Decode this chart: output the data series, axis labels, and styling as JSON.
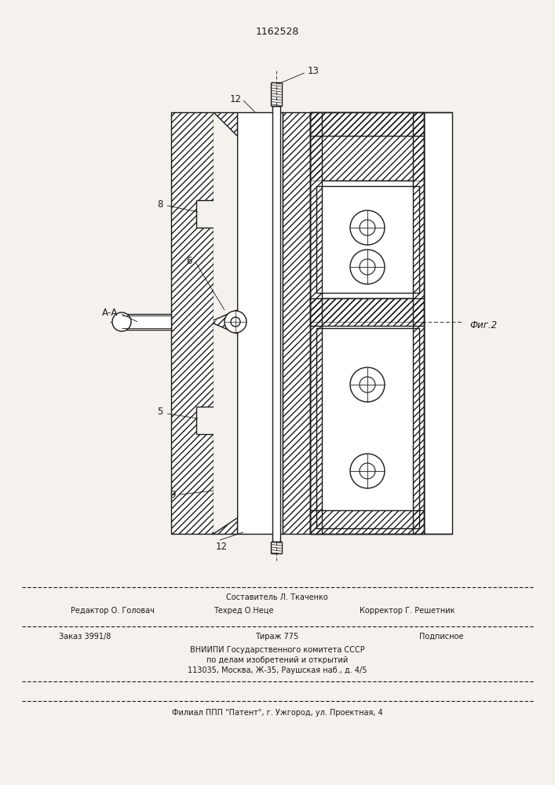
{
  "patent_number": "1162528",
  "bg": "#f5f2ee",
  "lc": "#1a1a1a",
  "title_fs": 9,
  "label_fs": 8.5,
  "footer_fs": 7.0,
  "composer_line": "Составитель Л. Ткаченко",
  "editor_line_left": "Редактор О. Головач",
  "editor_line_mid": "Техред О.Неце",
  "editor_line_right": "Корректор Г. Решетник",
  "order_left": "Заказ 3991/8",
  "order_mid": "Тираж 775",
  "order_right": "Подписное",
  "vnipi_line1": "ВНИИПИ Государственного комитета СССР",
  "vnipi_line2": "по делам изобретений и открытий",
  "vnipi_line3": "113035, Москва, Ж-35, Раушская наб., д. 4/5",
  "filial_line": "Филиал ППП \"Патент\", г. Ужгород, ул. Проектная, 4",
  "fig_label": "Фиг.2"
}
